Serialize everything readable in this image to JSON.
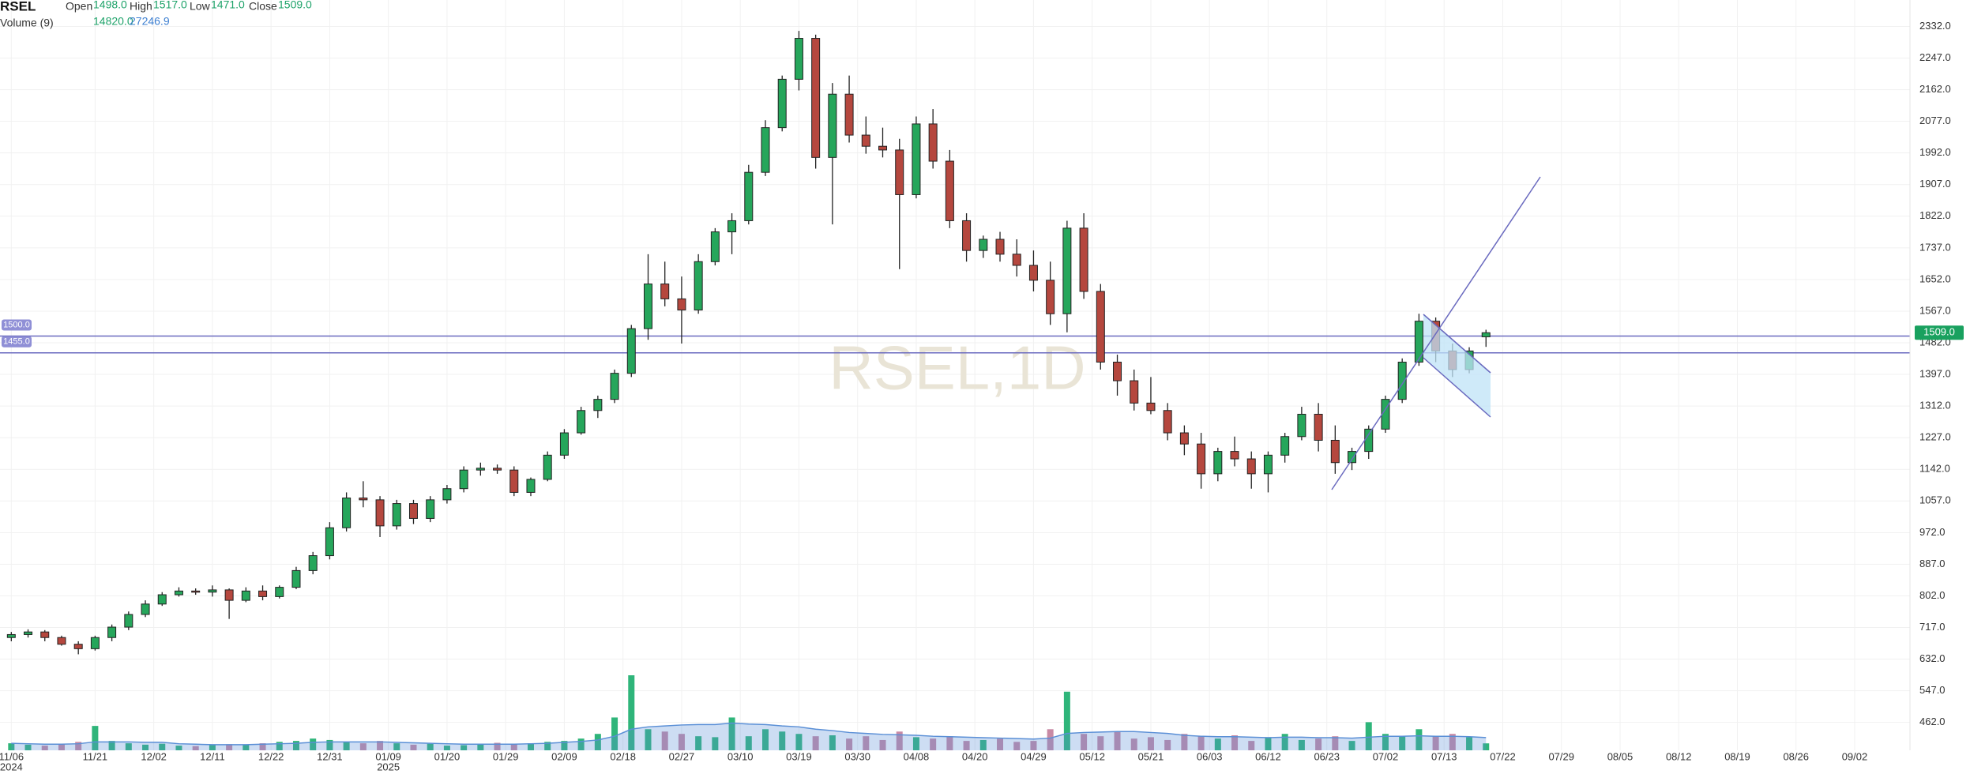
{
  "chart_data": {
    "type": "candlestick",
    "symbol": "RSEL",
    "watermark": "RSEL,1D",
    "legend": {
      "items": [
        {
          "name": "Open",
          "value": "1498.0"
        },
        {
          "name": "High",
          "value": "1517.0"
        },
        {
          "name": "Low",
          "value": "1471.0"
        },
        {
          "name": "Close",
          "value": "1509.0"
        }
      ],
      "volume_name": "Volume (9)",
      "volume": "14820.0",
      "volume_ma": "27246.9"
    },
    "up_color": "#26a65b",
    "down_color": "#b5473e",
    "volume_up_color": "#2fb57a",
    "volume_down_color": "#c88aa5",
    "volume_ma_color": "#5a8fd6",
    "level_color": "#6a6abf",
    "grid": true,
    "xlim": [
      -1.35,
      226.6
    ],
    "ylim": [
      387,
      2403
    ],
    "volume_lim": [
      0,
      1600000
    ],
    "yticks": [
      {
        "value": 462,
        "label": "462.0"
      },
      {
        "value": 547,
        "label": "547.0"
      },
      {
        "value": 632,
        "label": "632.0"
      },
      {
        "value": 717,
        "label": "717.0"
      },
      {
        "value": 802,
        "label": "802.0"
      },
      {
        "value": 887,
        "label": "887.0"
      },
      {
        "value": 972,
        "label": "972.0"
      },
      {
        "value": 1057,
        "label": "1057.0"
      },
      {
        "value": 1142,
        "label": "1142.0"
      },
      {
        "value": 1227,
        "label": "1227.0"
      },
      {
        "value": 1312,
        "label": "1312.0"
      },
      {
        "value": 1397,
        "label": "1397.0"
      },
      {
        "value": 1482,
        "label": "1482.0"
      },
      {
        "value": 1567,
        "label": "1567.0"
      },
      {
        "value": 1652,
        "label": "1652.0"
      },
      {
        "value": 1737,
        "label": "1737.0"
      },
      {
        "value": 1822,
        "label": "1822.0"
      },
      {
        "value": 1907,
        "label": "1907.0"
      },
      {
        "value": 1992,
        "label": "1992.0"
      },
      {
        "value": 2077,
        "label": "2077.0"
      },
      {
        "value": 2162,
        "label": "2162.0"
      },
      {
        "value": 2247,
        "label": "2247.0"
      },
      {
        "value": 2332,
        "label": "2332.0"
      }
    ],
    "xticks": [
      {
        "value": 0,
        "label": "11/06",
        "year": "2024"
      },
      {
        "value": 10,
        "label": "11/21"
      },
      {
        "value": 17,
        "label": "12/02"
      },
      {
        "value": 24,
        "label": "12/11"
      },
      {
        "value": 31,
        "label": "12/22"
      },
      {
        "value": 38,
        "label": "12/31"
      },
      {
        "value": 45,
        "label": "01/09",
        "year": "2025"
      },
      {
        "value": 52,
        "label": "01/20"
      },
      {
        "value": 59,
        "label": "01/29"
      },
      {
        "value": 66,
        "label": "02/09"
      },
      {
        "value": 73,
        "label": "02/18"
      },
      {
        "value": 80,
        "label": "02/27"
      },
      {
        "value": 87,
        "label": "03/10"
      },
      {
        "value": 94,
        "label": "03/19"
      },
      {
        "value": 101,
        "label": "03/30"
      },
      {
        "value": 108,
        "label": "04/08"
      },
      {
        "value": 115,
        "label": "04/20"
      },
      {
        "value": 122,
        "label": "04/29"
      },
      {
        "value": 129,
        "label": "05/12"
      },
      {
        "value": 136,
        "label": "05/21"
      },
      {
        "value": 143,
        "label": "06/03"
      },
      {
        "value": 150,
        "label": "06/12"
      },
      {
        "value": 157,
        "label": "06/23"
      },
      {
        "value": 164,
        "label": "07/02"
      },
      {
        "value": 171,
        "label": "07/13"
      },
      {
        "value": 178,
        "label": "07/22"
      },
      {
        "value": 185,
        "label": "07/29"
      },
      {
        "value": 192,
        "label": "08/05"
      },
      {
        "value": 199,
        "label": "08/12"
      },
      {
        "value": 206,
        "label": "08/19"
      },
      {
        "value": 213,
        "label": "08/26"
      },
      {
        "value": 220,
        "label": "09/02"
      }
    ],
    "levels": [
      {
        "value": 1500,
        "label": "1500.0"
      },
      {
        "value": 1455,
        "label": "1455.0"
      }
    ],
    "price_tag": {
      "value": 1509,
      "label": "1509.0"
    },
    "x": [
      0,
      2,
      4,
      6,
      8,
      10,
      12,
      14,
      16,
      18,
      20,
      22,
      24,
      26,
      28,
      30,
      32,
      34,
      36,
      38,
      40,
      42,
      44,
      46,
      48,
      50,
      52,
      54,
      56,
      58,
      60,
      62,
      64,
      66,
      68,
      70,
      72,
      74,
      76,
      78,
      80,
      82,
      84,
      86,
      88,
      90,
      92,
      94,
      96,
      98,
      100,
      102,
      104,
      106,
      108,
      110,
      112,
      114,
      116,
      118,
      120,
      122,
      124,
      126,
      128,
      130,
      132,
      134,
      136,
      138,
      140,
      142,
      144,
      146,
      148,
      150,
      152,
      154,
      156,
      158,
      160,
      162,
      164,
      166,
      168,
      170,
      172,
      174,
      176
    ],
    "candles": [
      [
        690,
        705,
        680,
        698
      ],
      [
        698,
        712,
        690,
        705
      ],
      [
        705,
        710,
        680,
        690
      ],
      [
        690,
        695,
        668,
        672
      ],
      [
        672,
        680,
        645,
        660
      ],
      [
        660,
        695,
        655,
        690
      ],
      [
        690,
        725,
        680,
        718
      ],
      [
        718,
        760,
        710,
        752
      ],
      [
        752,
        790,
        745,
        780
      ],
      [
        780,
        812,
        775,
        805
      ],
      [
        805,
        825,
        800,
        815
      ],
      [
        815,
        822,
        805,
        812
      ],
      [
        812,
        830,
        800,
        818
      ],
      [
        818,
        822,
        740,
        790
      ],
      [
        790,
        825,
        785,
        815
      ],
      [
        815,
        830,
        790,
        800
      ],
      [
        800,
        830,
        795,
        825
      ],
      [
        825,
        880,
        820,
        870
      ],
      [
        870,
        920,
        860,
        910
      ],
      [
        910,
        1000,
        900,
        985
      ],
      [
        985,
        1080,
        975,
        1065
      ],
      [
        1065,
        1110,
        1040,
        1060
      ],
      [
        1060,
        1070,
        960,
        990
      ],
      [
        990,
        1060,
        980,
        1050
      ],
      [
        1050,
        1060,
        995,
        1010
      ],
      [
        1010,
        1070,
        1000,
        1060
      ],
      [
        1060,
        1100,
        1050,
        1090
      ],
      [
        1090,
        1150,
        1080,
        1140
      ],
      [
        1140,
        1160,
        1125,
        1145
      ],
      [
        1145,
        1155,
        1130,
        1140
      ],
      [
        1140,
        1150,
        1070,
        1080
      ],
      [
        1080,
        1120,
        1070,
        1115
      ],
      [
        1115,
        1190,
        1110,
        1180
      ],
      [
        1180,
        1250,
        1170,
        1240
      ],
      [
        1240,
        1310,
        1235,
        1300
      ],
      [
        1300,
        1340,
        1280,
        1330
      ],
      [
        1330,
        1410,
        1320,
        1400
      ],
      [
        1400,
        1530,
        1390,
        1520
      ],
      [
        1520,
        1720,
        1490,
        1640
      ],
      [
        1640,
        1700,
        1580,
        1600
      ],
      [
        1600,
        1660,
        1480,
        1570
      ],
      [
        1570,
        1720,
        1560,
        1700
      ],
      [
        1700,
        1790,
        1690,
        1780
      ],
      [
        1780,
        1830,
        1720,
        1810
      ],
      [
        1810,
        1960,
        1800,
        1940
      ],
      [
        1940,
        2080,
        1930,
        2060
      ],
      [
        2060,
        2200,
        2050,
        2190
      ],
      [
        2190,
        2320,
        2160,
        2300
      ],
      [
        2300,
        2310,
        1950,
        1980
      ],
      [
        1980,
        2180,
        1800,
        2150
      ],
      [
        2150,
        2200,
        2020,
        2040
      ],
      [
        2040,
        2090,
        1990,
        2010
      ],
      [
        2010,
        2060,
        1980,
        2000
      ],
      [
        2000,
        2030,
        1680,
        1880
      ],
      [
        1880,
        2090,
        1870,
        2070
      ],
      [
        2070,
        2110,
        1950,
        1970
      ],
      [
        1970,
        2000,
        1790,
        1810
      ],
      [
        1810,
        1830,
        1700,
        1730
      ],
      [
        1730,
        1770,
        1710,
        1760
      ],
      [
        1760,
        1780,
        1700,
        1720
      ],
      [
        1720,
        1760,
        1660,
        1690
      ],
      [
        1690,
        1730,
        1620,
        1650
      ],
      [
        1650,
        1700,
        1530,
        1560
      ],
      [
        1560,
        1810,
        1510,
        1790
      ],
      [
        1790,
        1830,
        1600,
        1620
      ],
      [
        1620,
        1640,
        1410,
        1430
      ],
      [
        1430,
        1450,
        1340,
        1380
      ],
      [
        1380,
        1410,
        1300,
        1320
      ],
      [
        1320,
        1390,
        1290,
        1300
      ],
      [
        1300,
        1320,
        1220,
        1240
      ],
      [
        1240,
        1260,
        1180,
        1210
      ],
      [
        1210,
        1240,
        1090,
        1130
      ],
      [
        1130,
        1200,
        1110,
        1190
      ],
      [
        1190,
        1230,
        1150,
        1170
      ],
      [
        1170,
        1190,
        1090,
        1130
      ],
      [
        1130,
        1190,
        1080,
        1180
      ],
      [
        1180,
        1240,
        1160,
        1230
      ],
      [
        1230,
        1310,
        1220,
        1290
      ],
      [
        1290,
        1320,
        1190,
        1220
      ],
      [
        1220,
        1260,
        1130,
        1160
      ],
      [
        1160,
        1200,
        1140,
        1190
      ],
      [
        1190,
        1260,
        1170,
        1250
      ],
      [
        1250,
        1340,
        1240,
        1330
      ],
      [
        1330,
        1440,
        1320,
        1430
      ],
      [
        1430,
        1560,
        1420,
        1540
      ],
      [
        1540,
        1550,
        1430,
        1460
      ],
      [
        1460,
        1480,
        1390,
        1410
      ],
      [
        1410,
        1470,
        1400,
        1460
      ],
      [
        1498,
        1517,
        1471,
        1509
      ]
    ],
    "volume": [
      15000,
      12000,
      10000,
      14000,
      18000,
      52000,
      20000,
      15000,
      12000,
      14000,
      10000,
      9000,
      11000,
      13000,
      12000,
      15000,
      18000,
      20000,
      25000,
      22000,
      18000,
      15000,
      20000,
      15000,
      12000,
      14000,
      10000,
      11000,
      12000,
      16000,
      14000,
      15000,
      18000,
      20000,
      25000,
      35000,
      70000,
      160000,
      45000,
      40000,
      35000,
      30000,
      28000,
      70000,
      30000,
      45000,
      40000,
      35000,
      30000,
      32000,
      25000,
      30000,
      22000,
      40000,
      28000,
      25000,
      30000,
      20000,
      22000,
      25000,
      18000,
      20000,
      45000,
      125000,
      35000,
      30000,
      40000,
      25000,
      28000,
      22000,
      35000,
      30000,
      25000,
      32000,
      20000,
      28000,
      35000,
      22000,
      25000,
      30000,
      20000,
      60000,
      35000,
      30000,
      45000,
      30000,
      35000,
      28000,
      14820
    ],
    "volume_ma_values": [
      15000,
      14000,
      13000,
      13000,
      14000,
      18000,
      18000,
      18000,
      17000,
      17000,
      14000,
      13000,
      12000,
      12000,
      12000,
      13000,
      14000,
      15000,
      17000,
      18000,
      18000,
      18000,
      18000,
      17000,
      16000,
      15000,
      14000,
      13000,
      13000,
      13000,
      13000,
      14000,
      15000,
      17000,
      19000,
      22000,
      30000,
      45000,
      50000,
      52000,
      54000,
      55000,
      55000,
      58000,
      56000,
      55000,
      52000,
      50000,
      45000,
      42000,
      38000,
      36000,
      34000,
      33000,
      32000,
      30000,
      29000,
      28000,
      27000,
      26000,
      25000,
      24000,
      26000,
      36000,
      38000,
      39000,
      40000,
      40000,
      38000,
      36000,
      32000,
      30000,
      29000,
      29000,
      28000,
      27000,
      28000,
      28000,
      27000,
      27000,
      26000,
      28000,
      30000,
      30000,
      31000,
      30000,
      30000,
      29000,
      27246.9
    ]
  }
}
